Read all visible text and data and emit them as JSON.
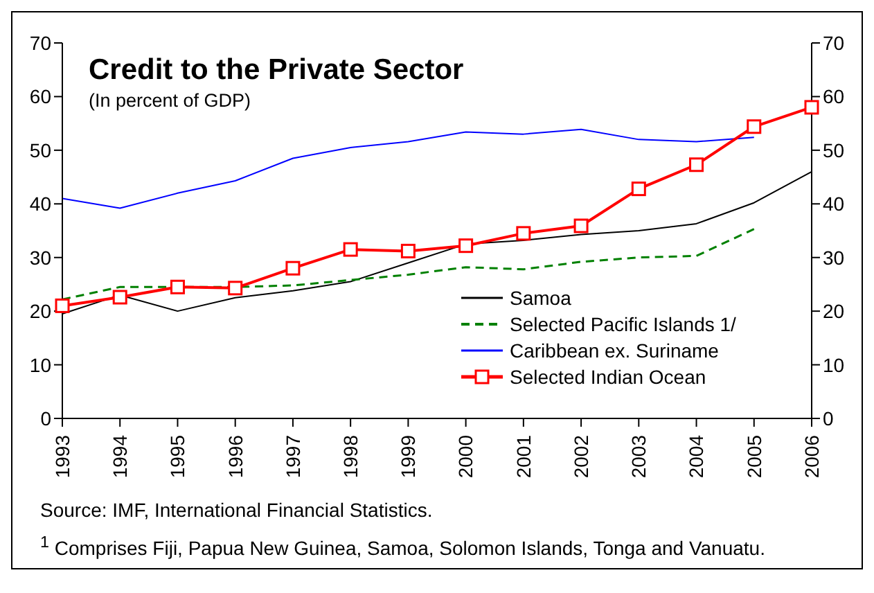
{
  "chart_data": {
    "type": "line",
    "title": "Credit to the Private Sector",
    "subtitle": "(In percent of GDP)",
    "categories": [
      "1993",
      "1994",
      "1995",
      "1996",
      "1997",
      "1998",
      "1999",
      "2000",
      "2001",
      "2002",
      "2003",
      "2004",
      "2005",
      "2006"
    ],
    "series": [
      {
        "name": "Samoa",
        "color": "#000000",
        "line_style": "solid",
        "marker": "none",
        "values": [
          19.5,
          23,
          20,
          22.5,
          23.8,
          25.5,
          29,
          32.5,
          33.2,
          34.3,
          35,
          36.3,
          40.2,
          46
        ]
      },
      {
        "name": "Selected Pacific Islands 1/",
        "color": "#008000",
        "line_style": "dashed",
        "marker": "none",
        "values": [
          22.2,
          24.5,
          24.5,
          24.5,
          24.8,
          25.8,
          26.8,
          28.2,
          27.8,
          29.2,
          30,
          30.3,
          35.3,
          null
        ]
      },
      {
        "name": "Caribbean ex. Suriname",
        "color": "#0000ff",
        "line_style": "solid",
        "marker": "none",
        "values": [
          41,
          39.2,
          42,
          44.3,
          48.5,
          50.5,
          51.6,
          53.4,
          53,
          53.9,
          52,
          51.6,
          52.4,
          null
        ]
      },
      {
        "name": "Selected Indian Ocean",
        "color": "#ff0000",
        "line_style": "solid",
        "marker": "square",
        "values": [
          21,
          22.6,
          24.5,
          24.3,
          28,
          31.5,
          31.2,
          32.2,
          34.5,
          35.9,
          42.8,
          47.3,
          54.4,
          58
        ]
      }
    ],
    "ylim": [
      0,
      70
    ],
    "yticks": [
      0,
      10,
      20,
      30,
      40,
      50,
      60,
      70
    ],
    "y2lim": [
      0,
      70
    ],
    "y2ticks": [
      0,
      10,
      20,
      30,
      40,
      50,
      60,
      70
    ],
    "grid": false,
    "legend": "bottom right",
    "annotations": [
      "Source: IMF, International Financial Statistics.",
      "$^{1}$ Comprises Fiji, Papua New Guinea, Samoa, Solomon Islands, Tonga and Vanuatu."
    ]
  }
}
